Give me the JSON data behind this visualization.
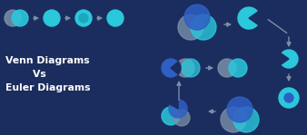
{
  "bg_color": "#1b2d5e",
  "text_color": "#ffffff",
  "cyan": "#2bc8dc",
  "blue": "#2f5fc4",
  "gray": "#7a8fa8",
  "arrow_color": "#7a8fa8",
  "title": "Venn Diagrams\n        Vs\nEuler Diagrams"
}
